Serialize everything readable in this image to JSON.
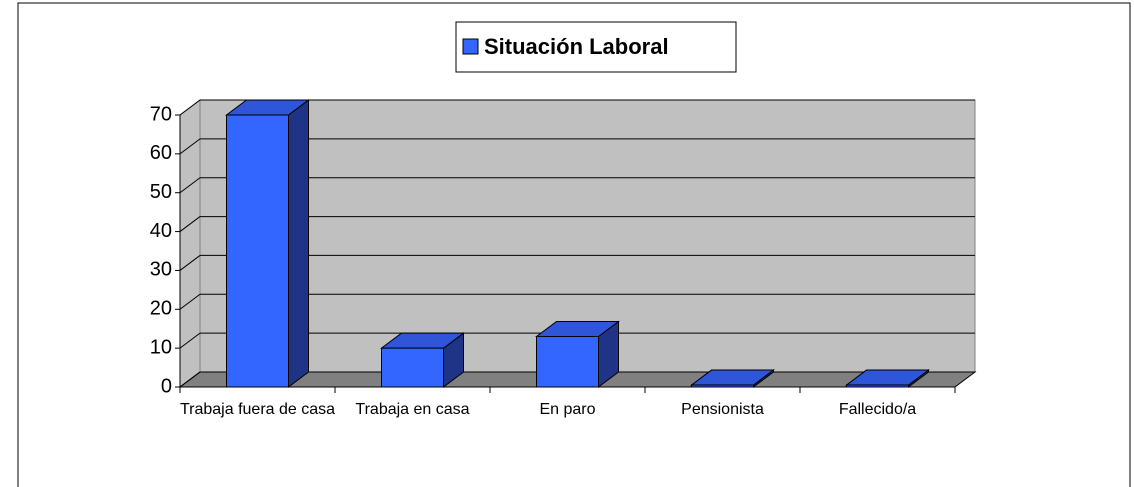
{
  "chart_data": {
    "type": "bar",
    "categories": [
      "Trabaja fuera de casa",
      "Trabaja en casa",
      "En paro",
      "Pensionista",
      "Fallecido/a"
    ],
    "series": [
      {
        "name": "Situación Laboral",
        "color": "#3366ff",
        "values": [
          70,
          10,
          13,
          0.5,
          0.5
        ]
      }
    ],
    "ylim": [
      0,
      70
    ],
    "yticks": [
      0,
      10,
      20,
      30,
      40,
      50,
      60,
      70
    ],
    "grid": true,
    "legend": "top"
  }
}
